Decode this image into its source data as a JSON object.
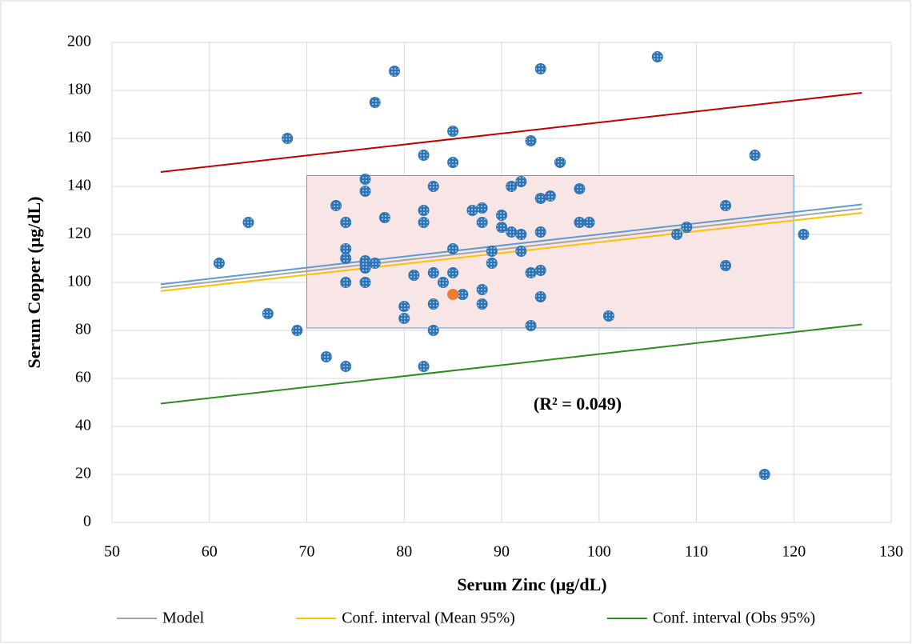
{
  "chart_data": {
    "type": "scatter",
    "x_label": "Serum Zinc (μg/dL)",
    "y_label": "Serum Copper (μg/dL)",
    "annotation": "(R² = 0.049)",
    "xlim": [
      50,
      130
    ],
    "xticks": [
      50,
      60,
      70,
      80,
      90,
      100,
      110,
      120,
      130
    ],
    "ylim": [
      0,
      200
    ],
    "yticks": [
      0,
      20,
      40,
      60,
      80,
      100,
      120,
      140,
      160,
      180,
      200
    ],
    "grid": true,
    "legend_position": "bottom",
    "highlight_box": {
      "xlim": [
        70,
        120
      ],
      "ylim": [
        81,
        144.5
      ],
      "color": "#f8e5e5",
      "border": "#5b9bd5"
    },
    "series": [
      {
        "color": "#2e75b6",
        "x": [
          61,
          64,
          66,
          68,
          69,
          72,
          73,
          74,
          74,
          74,
          74,
          74,
          76,
          76,
          76,
          76,
          76,
          76,
          77,
          77,
          78,
          79,
          80,
          80,
          81,
          82,
          82,
          82,
          82,
          83,
          83,
          83,
          83,
          84,
          85,
          85,
          85,
          85,
          86,
          87,
          88,
          88,
          88,
          88,
          89,
          89,
          90,
          90,
          91,
          91,
          92,
          92,
          92,
          93,
          93,
          93,
          94,
          94,
          94,
          94,
          94,
          95,
          96,
          98,
          98,
          99,
          101,
          106,
          108,
          109,
          113,
          113,
          116,
          117,
          121
        ],
        "values": [
          108,
          125,
          87,
          160,
          80,
          69,
          132,
          65,
          100,
          110,
          114,
          125,
          100,
          106,
          108,
          109,
          138,
          143,
          175,
          108,
          127,
          188,
          85,
          90,
          103,
          130,
          125,
          153,
          65,
          80,
          91,
          104,
          140,
          100,
          163,
          150,
          114,
          104,
          95,
          130,
          131,
          125,
          97,
          91,
          113,
          108,
          128,
          123,
          140,
          121,
          120,
          142,
          113,
          159,
          104,
          82,
          189,
          135,
          121,
          105,
          94,
          136,
          150,
          139,
          125,
          125,
          86,
          194,
          120,
          123,
          132,
          107,
          153,
          20,
          120
        ]
      },
      {
        "color": "#ed7d31",
        "x": [
          85
        ],
        "values": [
          95
        ]
      }
    ],
    "lines": [
      {
        "name": "Model",
        "color": "#a5a5a5",
        "x": [
          55,
          127
        ],
        "values": [
          97.8,
          130.8
        ]
      },
      {
        "color": "#5b9bd5",
        "x": [
          55,
          127
        ],
        "values": [
          99.2,
          132.5
        ]
      },
      {
        "name": "Conf. interval (Mean 95%)",
        "color": "#ffc000",
        "x": [
          55,
          127
        ],
        "values": [
          96.4,
          129
        ]
      },
      {
        "color": "#c00000",
        "x": [
          55,
          127
        ],
        "values": [
          146,
          179
        ]
      },
      {
        "name": "Conf. interval (Obs 95%)",
        "color": "#2e8b1e",
        "x": [
          55,
          127
        ],
        "values": [
          49.5,
          82.5
        ]
      }
    ]
  }
}
